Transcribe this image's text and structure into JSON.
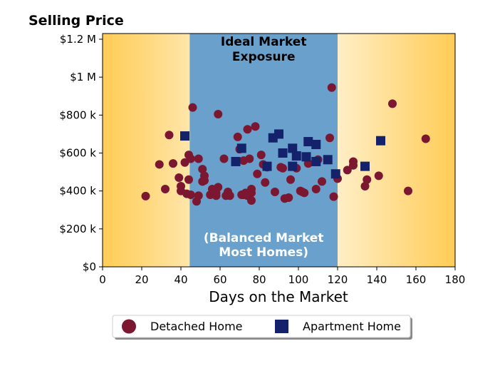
{
  "chart_data": {
    "type": "scatter",
    "ylabel": "Selling Price",
    "xlabel": "Days on the Market",
    "xlim": [
      0,
      180
    ],
    "ylim": [
      0,
      1230000
    ],
    "xticks": [
      0,
      20,
      40,
      60,
      80,
      100,
      120,
      140,
      160,
      180
    ],
    "xtick_labels": [
      "0",
      "20",
      "40",
      "60",
      "80",
      "100",
      "120",
      "140",
      "160",
      "180"
    ],
    "yticks": [
      0,
      200000,
      400000,
      600000,
      800000,
      1000000,
      1200000
    ],
    "ytick_labels": [
      "$0",
      "$200 k",
      "$400 k",
      "$600 k",
      "$800 k",
      "$1 M",
      "$1.2 M"
    ],
    "regions": [
      {
        "x_range": [
          44.5,
          120
        ],
        "color": "#6aa0cc",
        "label_top": "Ideal Market Exposure",
        "label_top_lines": [
          "Ideal Market",
          "Exposure"
        ],
        "label_bottom": "(Balanced Market Most Homes)",
        "label_bottom_lines": [
          "(Balanced Market",
          "Most Homes)"
        ]
      }
    ],
    "background_gradient": {
      "edge_color": "#ffcc55",
      "center_color": "#ffffff"
    },
    "legend_position": "bottom-center",
    "series": [
      {
        "name": "Detached Home",
        "marker": "circle",
        "color": "#7b1730",
        "points": [
          [
            22,
            373000
          ],
          [
            29,
            540000
          ],
          [
            32,
            410000
          ],
          [
            34,
            695000
          ],
          [
            36,
            545000
          ],
          [
            39,
            470000
          ],
          [
            40,
            425000
          ],
          [
            40,
            400000
          ],
          [
            42,
            550000
          ],
          [
            43,
            385000
          ],
          [
            44,
            590000
          ],
          [
            44,
            460000
          ],
          [
            45,
            570000
          ],
          [
            45,
            380000
          ],
          [
            46,
            840000
          ],
          [
            48,
            345000
          ],
          [
            49,
            570000
          ],
          [
            49,
            375000
          ],
          [
            51,
            515000
          ],
          [
            51,
            450000
          ],
          [
            52,
            480000
          ],
          [
            52,
            455000
          ],
          [
            55,
            380000
          ],
          [
            56,
            410000
          ],
          [
            57,
            395000
          ],
          [
            58,
            375000
          ],
          [
            58,
            390000
          ],
          [
            59,
            805000
          ],
          [
            59,
            420000
          ],
          [
            62,
            570000
          ],
          [
            63,
            375000
          ],
          [
            64,
            395000
          ],
          [
            65,
            375000
          ],
          [
            69,
            685000
          ],
          [
            70,
            620000
          ],
          [
            71,
            380000
          ],
          [
            72,
            380000
          ],
          [
            72,
            560000
          ],
          [
            73,
            390000
          ],
          [
            74,
            375000
          ],
          [
            74,
            725000
          ],
          [
            75,
            570000
          ],
          [
            76,
            390000
          ],
          [
            76,
            410000
          ],
          [
            76,
            350000
          ],
          [
            78,
            740000
          ],
          [
            79,
            490000
          ],
          [
            81,
            590000
          ],
          [
            82,
            540000
          ],
          [
            83,
            445000
          ],
          [
            84,
            525000
          ],
          [
            88,
            395000
          ],
          [
            91,
            525000
          ],
          [
            92,
            520000
          ],
          [
            93,
            360000
          ],
          [
            95,
            365000
          ],
          [
            96,
            460000
          ],
          [
            99,
            520000
          ],
          [
            101,
            400000
          ],
          [
            102,
            395000
          ],
          [
            103,
            390000
          ],
          [
            105,
            545000
          ],
          [
            109,
            410000
          ],
          [
            110,
            565000
          ],
          [
            112,
            450000
          ],
          [
            116,
            680000
          ],
          [
            117,
            945000
          ],
          [
            118,
            370000
          ],
          [
            120,
            465000
          ],
          [
            125,
            510000
          ],
          [
            128,
            555000
          ],
          [
            128,
            535000
          ],
          [
            134,
            425000
          ],
          [
            135,
            460000
          ],
          [
            141,
            480000
          ],
          [
            148,
            860000
          ],
          [
            156,
            400000
          ],
          [
            165,
            675000
          ]
        ]
      },
      {
        "name": "Apartment Home",
        "marker": "square",
        "color": "#13226a",
        "points": [
          [
            42,
            690000
          ],
          [
            68,
            555000
          ],
          [
            71,
            625000
          ],
          [
            84,
            530000
          ],
          [
            87,
            680000
          ],
          [
            90,
            700000
          ],
          [
            92,
            600000
          ],
          [
            97,
            625000
          ],
          [
            97,
            530000
          ],
          [
            99,
            585000
          ],
          [
            104,
            580000
          ],
          [
            105,
            660000
          ],
          [
            109,
            555000
          ],
          [
            109,
            645000
          ],
          [
            115,
            565000
          ],
          [
            119,
            490000
          ],
          [
            134,
            530000
          ],
          [
            142,
            665000
          ]
        ]
      }
    ]
  }
}
